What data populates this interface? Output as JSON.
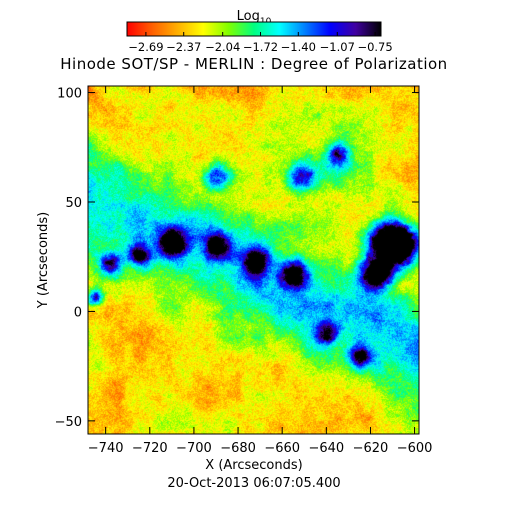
{
  "chart_data": {
    "type": "heatmap",
    "title": "Hinode SOT/SP - MERLIN : Degree of Polarization",
    "xlabel": "X (Arcseconds)",
    "ylabel": "Y (Arcseconds)",
    "date_text": "20-Oct-2013 06:07:05.400",
    "xlim": [
      -748,
      -598
    ],
    "ylim": [
      -56,
      103
    ],
    "x_ticks": [
      -740,
      -720,
      -700,
      -680,
      -660,
      -640,
      -620,
      -600
    ],
    "y_ticks": [
      -50,
      0,
      50,
      100
    ],
    "colorbar": {
      "title_base": "Log",
      "title_sub": "10",
      "range": [
        -2.85,
        -0.7
      ],
      "tick_values": [
        -2.69,
        -2.37,
        -2.04,
        -1.72,
        -1.4,
        -1.07,
        -0.75
      ],
      "tick_labels": [
        "−2.69",
        "−2.37",
        "−2.04",
        "−1.72",
        "−1.40",
        "−1.07",
        "−0.75"
      ],
      "colormap": [
        "#ff0000",
        "#ff6000",
        "#ffb000",
        "#ffff00",
        "#80ff00",
        "#00ff80",
        "#00ffff",
        "#0080ff",
        "#0000ff",
        "#4000a0",
        "#000000"
      ]
    },
    "features": [
      {
        "x": -613,
        "y": 32,
        "amp": 1.0,
        "r": 9
      },
      {
        "x": -606,
        "y": 30,
        "amp": 1.0,
        "r": 8
      },
      {
        "x": -617,
        "y": 18,
        "amp": 0.95,
        "r": 7
      },
      {
        "x": -690,
        "y": 30,
        "amp": 0.7,
        "r": 5
      },
      {
        "x": -672,
        "y": 23,
        "amp": 0.7,
        "r": 5
      },
      {
        "x": -655,
        "y": 17,
        "amp": 0.75,
        "r": 6
      },
      {
        "x": -710,
        "y": 32,
        "amp": 0.8,
        "r": 6
      },
      {
        "x": -738,
        "y": 22,
        "amp": 0.6,
        "r": 5
      },
      {
        "x": -745,
        "y": 6,
        "amp": 0.55,
        "r": 4
      },
      {
        "x": -725,
        "y": 26,
        "amp": 0.65,
        "r": 5
      },
      {
        "x": -640,
        "y": -10,
        "amp": 0.5,
        "r": 5
      },
      {
        "x": -625,
        "y": -20,
        "amp": 0.5,
        "r": 5
      },
      {
        "x": -652,
        "y": 62,
        "amp": 0.45,
        "r": 6
      },
      {
        "x": -635,
        "y": 72,
        "amp": 0.45,
        "r": 5
      },
      {
        "x": -690,
        "y": 62,
        "amp": 0.45,
        "r": 6
      }
    ]
  }
}
